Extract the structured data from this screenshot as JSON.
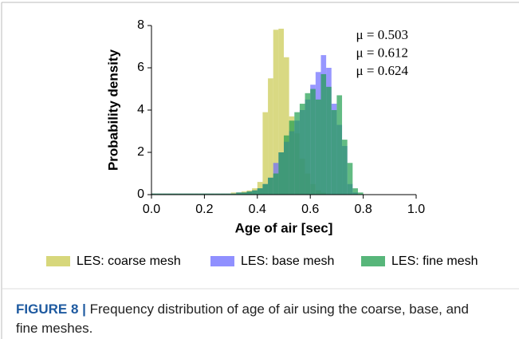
{
  "chart_data": {
    "type": "histogram",
    "xlabel": "Age of air [sec]",
    "ylabel": "Probability density",
    "bins": [
      0,
      0.02,
      0.04,
      0.06,
      0.08,
      0.1,
      0.12,
      0.14,
      0.16,
      0.18,
      0.2,
      0.22,
      0.24,
      0.26,
      0.28,
      0.3,
      0.32,
      0.34,
      0.36,
      0.38,
      0.4,
      0.42,
      0.44,
      0.46,
      0.48,
      0.5,
      0.52,
      0.54,
      0.56,
      0.58,
      0.6,
      0.62,
      0.64,
      0.66,
      0.68,
      0.7,
      0.72,
      0.74,
      0.76,
      0.78,
      0.8
    ],
    "series": [
      {
        "name": "LES: coarse mesh",
        "color": "#c9c94f",
        "values": [
          0.05,
          0.05,
          0.05,
          0.05,
          0.05,
          0.05,
          0.05,
          0.05,
          0.05,
          0.05,
          0.05,
          0.05,
          0.05,
          0.05,
          0.05,
          0.1,
          0.1,
          0.15,
          0.2,
          0.3,
          0.6,
          3.9,
          5.5,
          7.8,
          7.85,
          6.5,
          3.7,
          2.9,
          1.7,
          1.0,
          0.5,
          0.2,
          0.1,
          0,
          0,
          0,
          0,
          0,
          0,
          0
        ]
      },
      {
        "name": "LES: base mesh",
        "color": "#6b6bff",
        "values": [
          0.05,
          0.05,
          0.05,
          0.05,
          0.05,
          0.05,
          0.05,
          0.05,
          0.05,
          0.05,
          0.05,
          0.05,
          0.05,
          0.05,
          0.05,
          0.05,
          0.1,
          0.1,
          0.15,
          0.2,
          0.3,
          0.5,
          0.8,
          1.5,
          2.0,
          2.5,
          3.0,
          3.5,
          4.0,
          4.5,
          5.2,
          5.8,
          6.6,
          6.0,
          4.3,
          3.3,
          2.3,
          0.5,
          0.1,
          0
        ]
      },
      {
        "name": "LES: fine mesh",
        "color": "#1f9e4e",
        "values": [
          0.05,
          0.05,
          0.05,
          0.05,
          0.05,
          0.05,
          0.05,
          0.05,
          0.05,
          0.05,
          0.05,
          0.05,
          0.05,
          0.05,
          0.05,
          0.05,
          0.1,
          0.1,
          0.15,
          0.2,
          0.3,
          0.5,
          0.8,
          1.0,
          2.0,
          2.8,
          3.5,
          3.9,
          4.3,
          4.8,
          5.0,
          4.5,
          5.7,
          5.1,
          4.0,
          4.7,
          2.6,
          1.5,
          0.3,
          0.1
        ]
      }
    ],
    "annotations": [
      {
        "text": "μ = 0.503",
        "color": "#c2c236"
      },
      {
        "text": "μ = 0.612",
        "color": "#2b2bff"
      },
      {
        "text": "μ = 0.624",
        "color": "#1a8a3c"
      }
    ],
    "xlim": [
      0,
      1
    ],
    "xticks": [
      {
        "value": 0,
        "label": "0.0"
      },
      0.2,
      0.4,
      0.6,
      0.8,
      {
        "value": 1,
        "label": "1.0"
      }
    ],
    "ylim": [
      0,
      8
    ],
    "yticks": [
      0,
      2,
      4,
      6,
      8
    ],
    "grid": false
  },
  "caption": {
    "label": "FIGURE 8 |",
    "text": "Frequency distribution of age of air using the coarse, base, and fine meshes."
  }
}
